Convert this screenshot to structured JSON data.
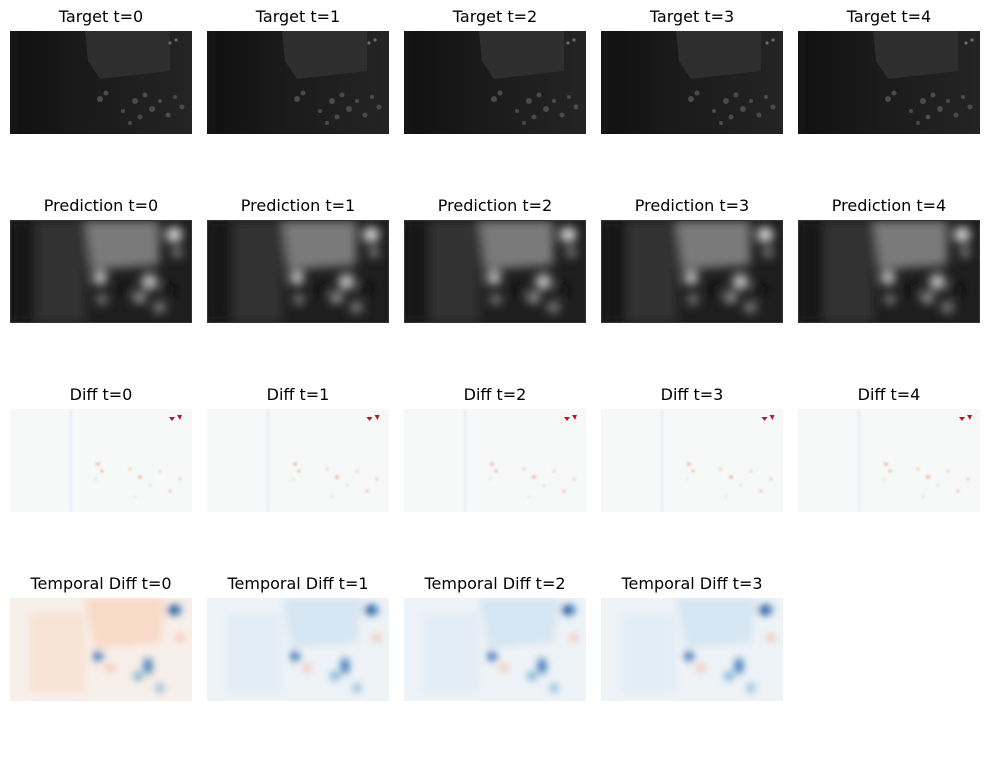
{
  "figure": {
    "rows": [
      {
        "key": "target",
        "titles": [
          "Target t=0",
          "Target t=1",
          "Target t=2",
          "Target t=3",
          "Target t=4"
        ]
      },
      {
        "key": "pred",
        "titles": [
          "Prediction t=0",
          "Prediction t=1",
          "Prediction t=2",
          "Prediction t=3",
          "Prediction t=4"
        ]
      },
      {
        "key": "diff",
        "titles": [
          "Diff t=0",
          "Diff t=1",
          "Diff t=2",
          "Diff t=3",
          "Diff t=4"
        ]
      },
      {
        "key": "temp",
        "titles": [
          "Temporal Diff t=0",
          "Temporal Diff t=1",
          "Temporal Diff t=2",
          "Temporal Diff t=3"
        ]
      }
    ]
  }
}
